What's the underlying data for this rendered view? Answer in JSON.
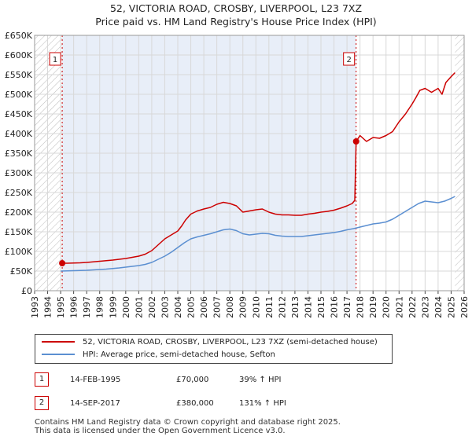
{
  "chart_data": {
    "type": "line",
    "title": "52, VICTORIA ROAD, CROSBY, LIVERPOOL, L23 7XZ",
    "subtitle": "Price paid vs. HM Land Registry's House Price Index (HPI)",
    "xlim": [
      1993,
      2026
    ],
    "ylim": [
      0,
      650000
    ],
    "x_ticks": [
      1993,
      1994,
      1995,
      1996,
      1997,
      1998,
      1999,
      2000,
      2001,
      2002,
      2003,
      2004,
      2005,
      2006,
      2007,
      2008,
      2009,
      2010,
      2011,
      2012,
      2013,
      2014,
      2015,
      2016,
      2017,
      2018,
      2019,
      2020,
      2021,
      2022,
      2023,
      2024,
      2025,
      2026
    ],
    "y_ticks": [
      0,
      50000,
      100000,
      150000,
      200000,
      250000,
      300000,
      350000,
      400000,
      450000,
      500000,
      550000,
      600000,
      650000
    ],
    "y_tick_labels": [
      "£0",
      "£50K",
      "£100K",
      "£150K",
      "£200K",
      "£250K",
      "£300K",
      "£350K",
      "£400K",
      "£450K",
      "£500K",
      "£550K",
      "£600K",
      "£650K"
    ],
    "shaded_region": {
      "from": 1995.12,
      "to": 2017.7
    },
    "hatched_regions": [
      {
        "from": 1993,
        "to": 1995.12
      },
      {
        "from": 2025.3,
        "to": 2026
      }
    ],
    "series": [
      {
        "name": "52, VICTORIA ROAD, CROSBY, LIVERPOOL, L23 7XZ (semi-detached house)",
        "color": "#cc0000",
        "x": [
          1995.12,
          1995.5,
          1996,
          1996.5,
          1997,
          1997.5,
          1998,
          1998.5,
          1999,
          1999.5,
          2000,
          2000.5,
          2001,
          2001.5,
          2002,
          2002.5,
          2003,
          2003.5,
          2004,
          2004.3,
          2004.6,
          2005,
          2005.5,
          2006,
          2006.5,
          2007,
          2007.5,
          2008,
          2008.5,
          2009,
          2009.5,
          2010,
          2010.5,
          2011,
          2011.5,
          2012,
          2012.5,
          2013,
          2013.5,
          2014,
          2014.5,
          2015,
          2015.5,
          2016,
          2016.5,
          2017,
          2017.4,
          2017.6,
          2017.7,
          2018,
          2018.5,
          2019,
          2019.5,
          2020,
          2020.5,
          2021,
          2021.5,
          2022,
          2022.3,
          2022.6,
          2023,
          2023.5,
          2024,
          2024.3,
          2024.6,
          2025,
          2025.3
        ],
        "values": [
          70000,
          70000,
          70500,
          71000,
          72000,
          73500,
          75000,
          76500,
          78000,
          80000,
          82000,
          85000,
          88000,
          93000,
          102000,
          117000,
          132000,
          142000,
          152000,
          165000,
          180000,
          195000,
          203000,
          208000,
          212000,
          220000,
          225000,
          222000,
          216000,
          200000,
          203000,
          206000,
          208000,
          200000,
          195000,
          193000,
          193000,
          192000,
          192000,
          195000,
          197000,
          200000,
          202000,
          205000,
          210000,
          216000,
          222000,
          230000,
          380000,
          395000,
          380000,
          390000,
          388000,
          395000,
          405000,
          430000,
          450000,
          475000,
          492000,
          510000,
          515000,
          505000,
          515000,
          500000,
          530000,
          545000,
          555000
        ]
      },
      {
        "name": "HPI: Average price, semi-detached house, Sefton",
        "color": "#5b8fd1",
        "x": [
          1995,
          1995.5,
          1996,
          1996.5,
          1997,
          1997.5,
          1998,
          1998.5,
          1999,
          1999.5,
          2000,
          2000.5,
          2001,
          2001.5,
          2002,
          2002.5,
          2003,
          2003.5,
          2004,
          2004.5,
          2005,
          2005.5,
          2006,
          2006.5,
          2007,
          2007.5,
          2008,
          2008.5,
          2009,
          2009.5,
          2010,
          2010.5,
          2011,
          2011.5,
          2012,
          2012.5,
          2013,
          2013.5,
          2014,
          2014.5,
          2015,
          2015.5,
          2016,
          2016.5,
          2017,
          2017.5,
          2018,
          2018.5,
          2019,
          2019.5,
          2020,
          2020.5,
          2021,
          2021.5,
          2022,
          2022.5,
          2023,
          2023.5,
          2024,
          2024.5,
          2025,
          2025.3
        ],
        "values": [
          50000,
          50500,
          51000,
          51500,
          52000,
          53000,
          54000,
          55000,
          56500,
          58000,
          60000,
          62000,
          64000,
          67000,
          72000,
          80000,
          88000,
          98000,
          110000,
          122000,
          132000,
          137000,
          141000,
          145000,
          150000,
          155000,
          157000,
          153000,
          145000,
          142000,
          144000,
          146000,
          145000,
          141000,
          139000,
          138000,
          138000,
          138000,
          140000,
          142000,
          144000,
          146000,
          148000,
          151000,
          155000,
          158000,
          162000,
          166000,
          170000,
          172000,
          175000,
          182000,
          192000,
          202000,
          212000,
          222000,
          228000,
          226000,
          224000,
          228000,
          235000,
          240000
        ]
      }
    ],
    "annotations": [
      {
        "label": "1",
        "x": 1995.12,
        "y": 70000
      },
      {
        "label": "2",
        "x": 2017.7,
        "y": 380000
      }
    ]
  },
  "legend": {
    "property": "52, VICTORIA ROAD, CROSBY, LIVERPOOL, L23 7XZ (semi-detached house)",
    "hpi": "HPI: Average price, semi-detached house, Sefton"
  },
  "sales": [
    {
      "num": "1",
      "date": "14-FEB-1995",
      "price": "£70,000",
      "hpi": "39% ↑ HPI"
    },
    {
      "num": "2",
      "date": "14-SEP-2017",
      "price": "£380,000",
      "hpi": "131% ↑ HPI"
    }
  ],
  "footer": {
    "line1": "Contains HM Land Registry data © Crown copyright and database right 2025.",
    "line2": "This data is licensed under the Open Government Licence v3.0."
  },
  "colors": {
    "property": "#cc0000",
    "hpi": "#5b8fd1",
    "shade": "#e8eef8",
    "grid": "#d8d8d8"
  }
}
